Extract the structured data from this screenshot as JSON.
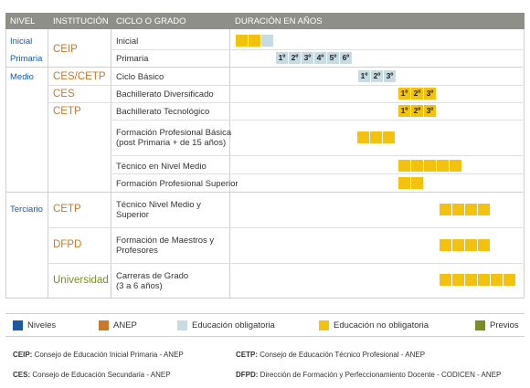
{
  "header": {
    "nivel": "NIVEL",
    "institucion": "INSTITUCIÓN",
    "ciclo": "CICLO O GRADO",
    "duracion": "DURACIÓN EN AÑOS"
  },
  "rows": {
    "inicial": {
      "nivel": "Inicial",
      "ciclo": "Inicial"
    },
    "primaria": {
      "nivel": "Primaria",
      "ciclo": "Primaria"
    },
    "ceip": "CEIP",
    "medio": "Medio",
    "cbasico": {
      "inst": "CES/CETP",
      "ciclo": "Ciclo Básico"
    },
    "bdiv": {
      "inst": "CES",
      "ciclo": "Bachillerato Diversificado"
    },
    "btec": {
      "inst": "CETP",
      "ciclo": "Bachillerato Tecnológico"
    },
    "fpb": {
      "ciclo_line1": "Formación Profesional Básica",
      "ciclo_line2": "(post Primaria + de 15 años)"
    },
    "tnm": {
      "ciclo": "Técnico en Nivel Medio"
    },
    "fps": {
      "ciclo": "Formación Profesional Superior"
    },
    "terciario": "Terciario",
    "tnms": {
      "inst": "CETP",
      "ciclo_line1": "Técnico Nivel Medio y",
      "ciclo_line2": "Superior"
    },
    "dfpd": {
      "inst": "DFPD",
      "ciclo_line1": "Formación de Maestros y",
      "ciclo_line2": "Profesores"
    },
    "univ": {
      "inst": "Universidad",
      "ciclo_line1": "Carreras de Grado",
      "ciclo_line2": "(3 a 6 años)"
    }
  },
  "year_labels": {
    "primaria": [
      "1º",
      "2º",
      "3º",
      "4º",
      "5º",
      "6º"
    ],
    "cbasico": [
      "1º",
      "2º",
      "3º"
    ],
    "bdiv": [
      "1º",
      "2º",
      "3º"
    ],
    "btec": [
      "1º",
      "2º",
      "3º"
    ]
  },
  "legend": {
    "niveles": "Niveles",
    "anep": "ANEP",
    "obligatoria": "Educación obligatoria",
    "no_obligatoria": "Educación no obligatoria",
    "previos": "Previos",
    "colors": {
      "niveles": "#1a5aa0",
      "anep": "#c8792a",
      "obligatoria": "#c7dbe3",
      "no_obligatoria": "#f2c20e",
      "previos": "#7d8c2a"
    }
  },
  "abbreviations": {
    "ceip": {
      "key": "CEIP:",
      "text": " Consejo de Educación Inicial Primaria - ANEP"
    },
    "cetp": {
      "key": "CETP:",
      "text": " Consejo de Educación Técnico Profesional - ANEP"
    },
    "ces": {
      "key": "CES:",
      "text": " Consejo de Educación Secundaria - ANEP"
    },
    "dfpd": {
      "key": "DFPD:",
      "text": " Dirección de Formación y Perfeccionamiento Docente - CODICEN - ANEP"
    }
  }
}
